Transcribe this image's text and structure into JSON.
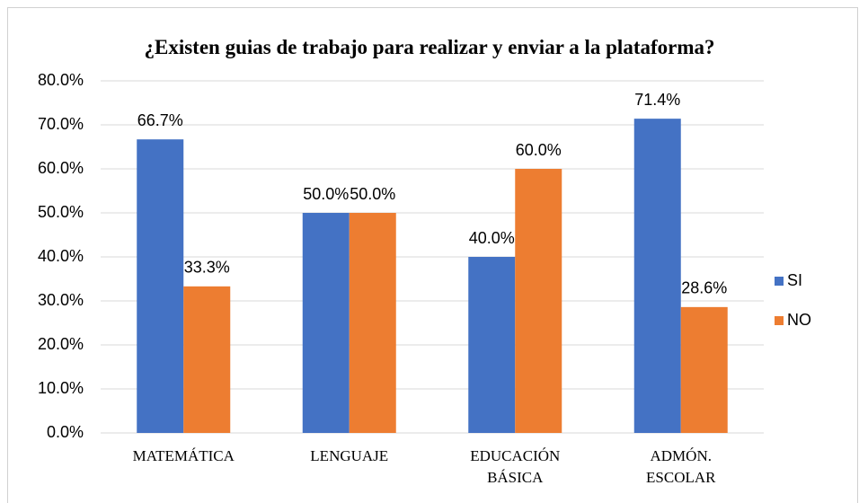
{
  "chart_data": {
    "type": "bar",
    "title": "¿Existen guias de trabajo para realizar y enviar a la plataforma?",
    "categories": [
      "MATEMÁTICA",
      "LENGUAJE",
      "EDUCACIÓN BÁSICA",
      "ADMÓN. ESCOLAR"
    ],
    "series": [
      {
        "name": "SI",
        "color": "#4472c4",
        "values": [
          66.7,
          50.0,
          40.0,
          71.4
        ],
        "value_labels": [
          "66.7%",
          "50.0%",
          "40.0%",
          "71.4%"
        ]
      },
      {
        "name": "NO",
        "color": "#ed7d31",
        "values": [
          33.3,
          50.0,
          60.0,
          28.6
        ],
        "value_labels": [
          "33.3%",
          "50.0%",
          "60.0%",
          "28.6%"
        ]
      }
    ],
    "ylim": [
      0,
      80
    ],
    "yticks": [
      {
        "value": 0,
        "label": "0.0%"
      },
      {
        "value": 10,
        "label": "10.0%"
      },
      {
        "value": 20,
        "label": "20.0%"
      },
      {
        "value": 30,
        "label": "30.0%"
      },
      {
        "value": 40,
        "label": "40.0%"
      },
      {
        "value": 50,
        "label": "50.0%"
      },
      {
        "value": 60,
        "label": "60.0%"
      },
      {
        "value": 70,
        "label": "70.0%"
      },
      {
        "value": 80,
        "label": "80.0%"
      }
    ],
    "grid": true,
    "legend": "right"
  }
}
